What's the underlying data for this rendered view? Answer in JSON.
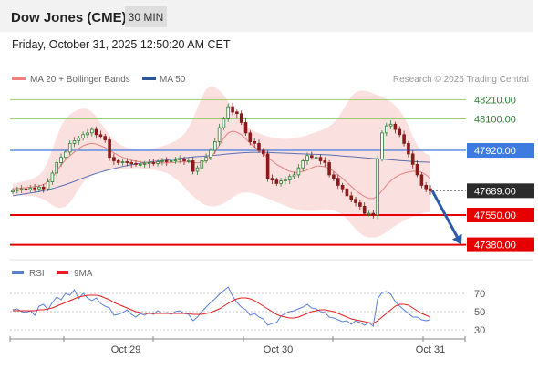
{
  "header": {
    "title": "Dow Jones (CME)",
    "timeframe": "30 MIN",
    "datetime": "Friday, October 31, 2025 12:50:20 AM CET"
  },
  "legend": {
    "ma20": "MA 20 + Bollinger Bands",
    "ma50": "MA 50",
    "credit": "Research © 2025 Trading Central"
  },
  "rsi_legend": {
    "rsi": "RSI",
    "ma": "9MA"
  },
  "colors": {
    "up": "#2e7d32",
    "down": "#8b1a1a",
    "bollinger_fill": "#fadada",
    "ma20": "#e88080",
    "ma50": "#5a6fb3",
    "resistance_green": "#9ccc65",
    "pivot_blue": "#3d7be0",
    "support_red": "#e60000",
    "current_price_bg": "#2b2b2b",
    "forecast_arrow": "#2a5aa8",
    "rsi_line": "#5b7fd6",
    "rsi_ma": "#e02020"
  },
  "chart_data": [
    {
      "type": "candlestick",
      "title": "Dow Jones (CME)",
      "timeframe": "30 MIN",
      "x_labels": [
        "Oct 29",
        "Oct 30",
        "Oct 31"
      ],
      "ylim": [
        47310,
        48280
      ],
      "levels": [
        {
          "value": 48210.0,
          "label": "48210.00",
          "kind": "resistance"
        },
        {
          "value": 48100.0,
          "label": "48100.00",
          "kind": "resistance"
        },
        {
          "value": 47920.0,
          "label": "47920.00",
          "kind": "pivot"
        },
        {
          "value": 47689.0,
          "label": "47689.00",
          "kind": "current"
        },
        {
          "value": 47550.0,
          "label": "47550.00",
          "kind": "support"
        },
        {
          "value": 47380.0,
          "label": "47380.00",
          "kind": "support"
        }
      ],
      "closes": [
        47690,
        47695,
        47700,
        47695,
        47705,
        47700,
        47710,
        47700,
        47740,
        47790,
        47850,
        47880,
        47910,
        47960,
        47975,
        47990,
        48010,
        48020,
        48040,
        48010,
        48000,
        47980,
        47880,
        47860,
        47850,
        47855,
        47850,
        47845,
        47840,
        47840,
        47845,
        47850,
        47845,
        47855,
        47860,
        47855,
        47860,
        47865,
        47870,
        47860,
        47860,
        47800,
        47820,
        47860,
        47880,
        47920,
        47970,
        48050,
        48100,
        48170,
        48140,
        48130,
        48080,
        48020,
        47970,
        47960,
        47920,
        47900,
        47760,
        47750,
        47730,
        47745,
        47750,
        47770,
        47780,
        47820,
        47860,
        47890,
        47880,
        47880,
        47860,
        47850,
        47780,
        47760,
        47720,
        47700,
        47660,
        47640,
        47620,
        47600,
        47560,
        47560,
        47550,
        47870,
        48020,
        48060,
        48070,
        48040,
        48010,
        47960,
        47900,
        47840,
        47780,
        47720,
        47700,
        47689
      ],
      "ma20": [
        47700,
        47702,
        47705,
        47707,
        47710,
        47712,
        47716,
        47724,
        47740,
        47764,
        47800,
        47836,
        47866,
        47890,
        47910,
        47930,
        47946,
        47956,
        47960,
        47956,
        47946,
        47936,
        47920,
        47906,
        47892,
        47880,
        47870,
        47864,
        47858,
        47854,
        47851,
        47850,
        47848,
        47848,
        47848,
        47848,
        47850,
        47852,
        47855,
        47856,
        47855,
        47850,
        47848,
        47852,
        47862,
        47880,
        47910,
        47950,
        47990,
        48020,
        48030,
        48024,
        48010,
        47986,
        47960,
        47940,
        47920,
        47900,
        47880,
        47860,
        47840,
        47826,
        47810,
        47800,
        47794,
        47794,
        47800,
        47808,
        47820,
        47830,
        47830,
        47826,
        47816,
        47800,
        47780,
        47760,
        47736,
        47714,
        47692,
        47672,
        47656,
        47646,
        47644,
        47660,
        47690,
        47720,
        47746,
        47766,
        47780,
        47790,
        47796,
        47800,
        47800,
        47795,
        47780,
        47760
      ],
      "bollinger_upper": [
        47730,
        47734,
        47740,
        47746,
        47752,
        47762,
        47778,
        47806,
        47858,
        47926,
        47998,
        48058,
        48100,
        48126,
        48142,
        48154,
        48160,
        48156,
        48140,
        48112,
        48076,
        48042,
        48006,
        47980,
        47960,
        47946,
        47936,
        47930,
        47926,
        47924,
        47924,
        47926,
        47930,
        47936,
        47944,
        47952,
        47962,
        47974,
        47990,
        48014,
        48050,
        48100,
        48164,
        48224,
        48270,
        48286,
        48280,
        48264,
        48236,
        48200,
        48160,
        48120,
        48090,
        48064,
        48044,
        48030,
        48018,
        48008,
        48000,
        47994,
        47990,
        47987,
        47986,
        47987,
        47990,
        47994,
        48000,
        48008,
        48016,
        48024,
        48034,
        48044,
        48058,
        48078,
        48108,
        48146,
        48190,
        48228,
        48252,
        48262,
        48262,
        48256,
        48246,
        48236,
        48226,
        48214,
        48198,
        48176,
        48148,
        48110,
        48060,
        48000,
        47950,
        47920,
        47900,
        47892
      ],
      "bollinger_lower": [
        47668,
        47666,
        47664,
        47662,
        47660,
        47656,
        47650,
        47640,
        47624,
        47606,
        47594,
        47590,
        47598,
        47622,
        47658,
        47700,
        47736,
        47760,
        47778,
        47792,
        47800,
        47804,
        47806,
        47808,
        47810,
        47812,
        47814,
        47816,
        47818,
        47818,
        47816,
        47812,
        47808,
        47804,
        47798,
        47790,
        47776,
        47758,
        47736,
        47710,
        47682,
        47658,
        47636,
        47618,
        47606,
        47600,
        47600,
        47606,
        47616,
        47632,
        47650,
        47666,
        47676,
        47680,
        47678,
        47672,
        47664,
        47654,
        47644,
        47634,
        47624,
        47614,
        47604,
        47594,
        47586,
        47580,
        47576,
        47574,
        47574,
        47576,
        47578,
        47580,
        47580,
        47576,
        47566,
        47550,
        47526,
        47498,
        47470,
        47446,
        47430,
        47422,
        47420,
        47424,
        47436,
        47452,
        47470,
        47488,
        47504,
        47518,
        47530,
        47540,
        47550,
        47558,
        47564,
        47568
      ],
      "ma50": [
        47660,
        47664,
        47668,
        47672,
        47676,
        47680,
        47684,
        47689,
        47695,
        47701,
        47708,
        47716,
        47724,
        47733,
        47742,
        47752,
        47762,
        47771,
        47780,
        47788,
        47796,
        47803,
        47810,
        47816,
        47822,
        47828,
        47833,
        47838,
        47842,
        47846,
        47850,
        47853,
        47856,
        47859,
        47862,
        47865,
        47868,
        47871,
        47874,
        47877,
        47880,
        47882,
        47884,
        47886,
        47888,
        47890,
        47892,
        47894,
        47897,
        47900,
        47902,
        47904,
        47906,
        47907,
        47908,
        47909,
        47909,
        47909,
        47908,
        47907,
        47906,
        47905,
        47904,
        47903,
        47902,
        47901,
        47900,
        47899,
        47898,
        47897,
        47896,
        47895,
        47894,
        47892,
        47890,
        47888,
        47886,
        47884,
        47882,
        47880,
        47878,
        47876,
        47874,
        47872,
        47870,
        47868,
        47866,
        47864,
        47862,
        47860,
        47858,
        47856,
        47855,
        47854,
        47853,
        47852
      ],
      "forecast": {
        "from": 47689,
        "to": 47380
      }
    },
    {
      "type": "line",
      "title": "RSI",
      "series": [
        {
          "name": "RSI",
          "values": [
            52,
            53,
            50,
            49,
            51,
            46,
            56,
            58,
            52,
            60,
            66,
            63,
            70,
            68,
            74,
            64,
            70,
            65,
            62,
            65,
            59,
            56,
            54,
            46,
            47,
            49,
            52,
            47,
            44,
            48,
            46,
            49,
            47,
            51,
            48,
            49,
            47,
            50,
            51,
            48,
            47,
            40,
            44,
            50,
            55,
            60,
            64,
            69,
            73,
            77,
            67,
            60,
            55,
            52,
            46,
            48,
            44,
            42,
            35,
            37,
            38,
            45,
            48,
            50,
            51,
            53,
            55,
            58,
            54,
            53,
            50,
            49,
            44,
            43,
            41,
            39,
            40,
            36,
            40,
            38,
            35,
            38,
            34,
            64,
            71,
            72,
            69,
            61,
            56,
            52,
            48,
            44,
            44,
            41,
            40,
            41
          ]
        },
        {
          "name": "9MA",
          "values": [
            51,
            51,
            51,
            51,
            51,
            51,
            52,
            52,
            53,
            54,
            56,
            58,
            60,
            62,
            64,
            66,
            67,
            68,
            68,
            68,
            67,
            65,
            63,
            60,
            58,
            56,
            54,
            52,
            50,
            49,
            48,
            48,
            48,
            48,
            48,
            48,
            48,
            48,
            48,
            48,
            48,
            47,
            47,
            47,
            48,
            49,
            51,
            53,
            56,
            59,
            62,
            64,
            65,
            65,
            64,
            62,
            59,
            56,
            53,
            50,
            47,
            45,
            44,
            43,
            43,
            44,
            46,
            48,
            50,
            51,
            52,
            52,
            51,
            50,
            48,
            46,
            44,
            42,
            41,
            40,
            39,
            38,
            37,
            40,
            44,
            48,
            52,
            56,
            58,
            58,
            57,
            54,
            51,
            48,
            46,
            44
          ]
        }
      ],
      "yticks": [
        30,
        50,
        70
      ],
      "ylim": [
        22,
        84
      ]
    }
  ]
}
